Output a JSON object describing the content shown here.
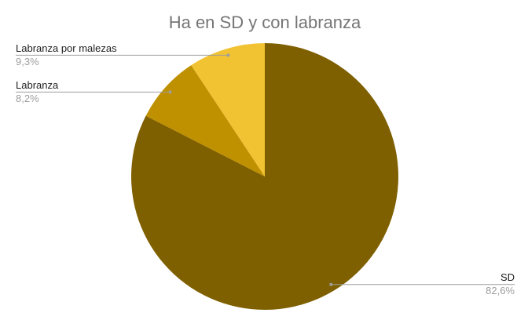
{
  "chart_data": {
    "type": "pie",
    "title": "Ha en SD y con labranza",
    "categories": [
      "SD",
      "Labranza",
      "Labranza por malezas"
    ],
    "values": [
      82.6,
      8.2,
      9.3
    ],
    "value_labels": [
      "82,6%",
      "8,2%",
      "9,3%"
    ],
    "colors": [
      "#7f6000",
      "#bf9000",
      "#f1c232"
    ]
  }
}
